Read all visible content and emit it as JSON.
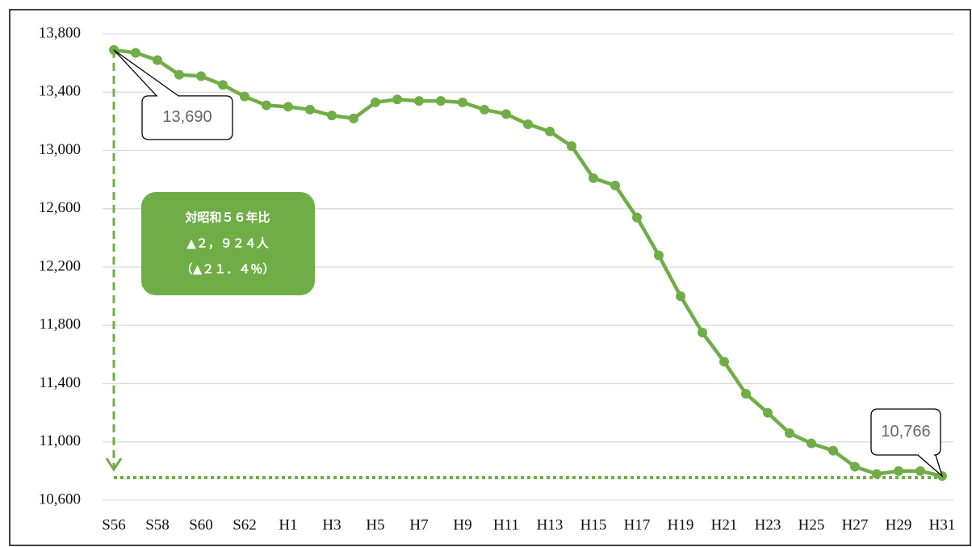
{
  "chart_data": {
    "type": "line",
    "categories": [
      "S56",
      null,
      "S58",
      null,
      "S60",
      null,
      "S62",
      null,
      "H1",
      null,
      "H3",
      null,
      "H5",
      null,
      "H7",
      null,
      "H9",
      null,
      "H11",
      null,
      "H13",
      null,
      "H15",
      null,
      "H17",
      null,
      "H19",
      null,
      "H21",
      null,
      "H23",
      null,
      "H25",
      null,
      "H27",
      null,
      "H29",
      null,
      "H31"
    ],
    "values": [
      13690,
      13670,
      13620,
      13520,
      13510,
      13450,
      13370,
      13310,
      13300,
      13280,
      13240,
      13220,
      13330,
      13350,
      13340,
      13340,
      13330,
      13280,
      13250,
      13180,
      13130,
      13030,
      12810,
      12760,
      12540,
      12280,
      12000,
      11750,
      11550,
      11330,
      11200,
      11060,
      10990,
      10940,
      10830,
      10780,
      10800,
      10800,
      10766
    ],
    "value_labels": [
      "13,690",
      null,
      null,
      null,
      null,
      null,
      null,
      null,
      null,
      null,
      null,
      null,
      null,
      null,
      null,
      null,
      null,
      null,
      null,
      null,
      null,
      null,
      null,
      null,
      null,
      null,
      null,
      null,
      null,
      null,
      null,
      null,
      null,
      null,
      null,
      null,
      null,
      null,
      "10,766"
    ],
    "color": "#70ad47",
    "ylim": [
      10600,
      13800
    ],
    "yticks": [
      {
        "value": 10600,
        "label": "10,600"
      },
      {
        "value": 11000,
        "label": "11,000"
      },
      {
        "value": 11400,
        "label": "11,400"
      },
      {
        "value": 11800,
        "label": "11,800"
      },
      {
        "value": 12200,
        "label": "12,200"
      },
      {
        "value": 12600,
        "label": "12,600"
      },
      {
        "value": 13000,
        "label": "13,000"
      },
      {
        "value": 13400,
        "label": "13,400"
      },
      {
        "value": 13800,
        "label": "13,800"
      }
    ],
    "grid": true,
    "annotation": [
      "対昭和５６年比",
      "▲２，９２４人",
      "（▲２１．４％）"
    ]
  }
}
